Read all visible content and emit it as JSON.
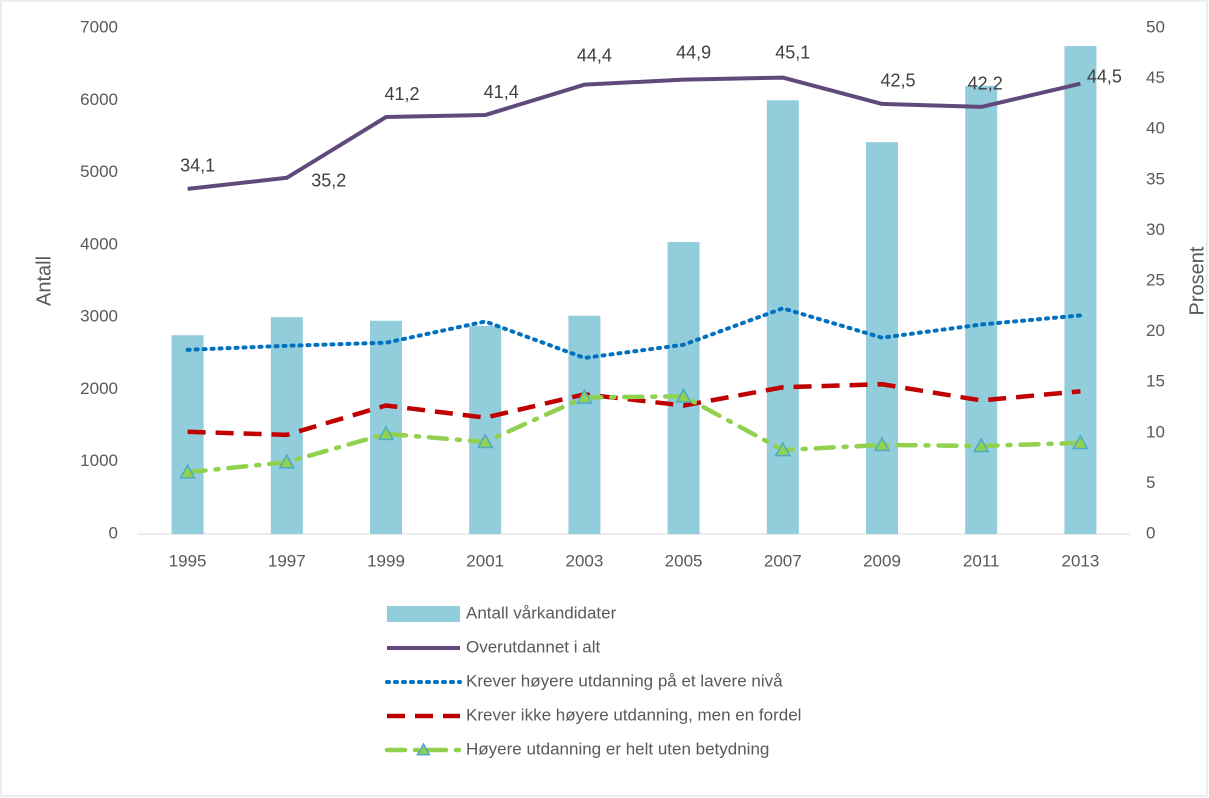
{
  "chart_data": {
    "type": "bar-line",
    "y_label": "Antall",
    "y2_label": "Prosent",
    "categories": [
      "1995",
      "1997",
      "1999",
      "2001",
      "2003",
      "2005",
      "2007",
      "2009",
      "2011",
      "2013"
    ],
    "ylim": [
      0,
      7000
    ],
    "yticks": [
      0,
      1000,
      2000,
      3000,
      4000,
      5000,
      6000,
      7000
    ],
    "y2lim": [
      0,
      50
    ],
    "y2ticks": [
      0,
      5,
      10,
      15,
      20,
      25,
      30,
      35,
      40,
      45,
      50
    ],
    "series": [
      {
        "name": "Antall vårkandidater",
        "type": "bar",
        "color": "#92cddc",
        "values": [
          2750,
          3000,
          2950,
          2880,
          3020,
          4040,
          6000,
          5420,
          6200,
          6750
        ]
      },
      {
        "name": "Overutdannet i alt",
        "type": "line",
        "axis": "y2",
        "color": "#604a7b",
        "style": "solid",
        "values": [
          34.1,
          35.2,
          41.2,
          41.4,
          44.4,
          44.9,
          45.1,
          42.5,
          42.2,
          44.5
        ],
        "value_labels": [
          "34,1",
          "35,2",
          "41,2",
          "41,4",
          "44,4",
          "44,9",
          "45,1",
          "42,5",
          "42,2",
          "44,5"
        ]
      },
      {
        "name": "Krever høyere utdanning på et lavere nivå",
        "type": "line",
        "axis": "y2",
        "color": "#0070c0",
        "style": "dotted",
        "values": [
          18.2,
          18.6,
          18.9,
          21.0,
          17.4,
          18.7,
          22.3,
          19.4,
          20.7,
          21.6
        ]
      },
      {
        "name": "Krever ikke høyere utdanning, men en fordel",
        "type": "line",
        "axis": "y2",
        "color": "#c00000",
        "style": "dashed",
        "values": [
          10.1,
          9.8,
          12.7,
          11.5,
          13.8,
          12.7,
          14.5,
          14.8,
          13.2,
          14.1
        ]
      },
      {
        "name": "Høyere utdanning er helt uten betydning",
        "type": "line",
        "axis": "y2",
        "color": "#92d050",
        "style": "dashdot",
        "marker": "triangle",
        "values": [
          6.1,
          7.1,
          9.9,
          9.1,
          13.5,
          13.6,
          8.3,
          8.8,
          8.7,
          9.0
        ]
      }
    ]
  }
}
